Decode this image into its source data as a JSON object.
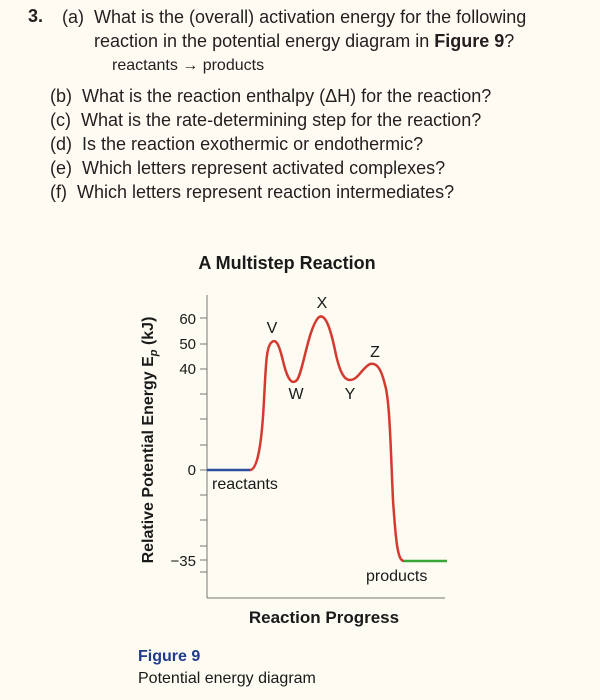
{
  "question": {
    "number": "3.",
    "parts": [
      {
        "letter": "(a)",
        "line1": "What is the (overall) activation energy for the following",
        "line2_pre": "reaction in the potential energy diagram in ",
        "line2_bold": "Figure 9",
        "line2_post": "?"
      },
      {
        "letter": "(b)",
        "text": "What is the reaction enthalpy (ΔH) for the reaction?"
      },
      {
        "letter": "(c)",
        "text": "What is the rate-determining step for the reaction?"
      },
      {
        "letter": "(d)",
        "text": "Is the reaction exothermic or endothermic?"
      },
      {
        "letter": "(e)",
        "text": "Which letters represent activated complexes?"
      },
      {
        "letter": "(f)",
        "text": "Which letters represent reaction intermediates?"
      }
    ],
    "equation": "reactants → products"
  },
  "diagram": {
    "title": "A Multistep Reaction",
    "ylabel": "Relative Potential Energy E",
    "ylabel_sub": "p",
    "ylabel_unit": " (kJ)",
    "xlabel": "Reaction Progress",
    "ticks": [
      "60",
      "50",
      "40",
      "0",
      "−35"
    ],
    "point_labels": {
      "V": "V",
      "W": "W",
      "X": "X",
      "Y": "Y",
      "Z": "Z"
    },
    "reactants_label": "reactants",
    "products_label": "products",
    "colors": {
      "reactants": "#2e4f9e",
      "products": "#3aa63a",
      "curve": "#d43a2f"
    }
  },
  "figure": {
    "number": "Figure 9",
    "caption": "Potential energy diagram"
  }
}
